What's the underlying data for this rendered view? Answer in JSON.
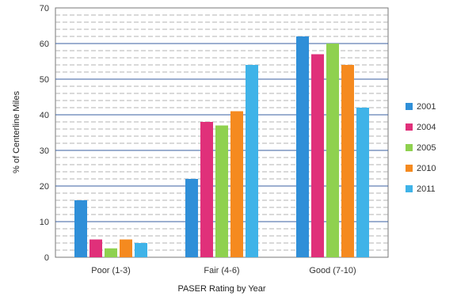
{
  "chart_data": {
    "type": "bar",
    "categories": [
      "Poor (1-3)",
      "Fair (4-6)",
      "Good (7-10)"
    ],
    "series": [
      {
        "name": "2001",
        "color": "#2f8fd8",
        "values": [
          16,
          22,
          62
        ]
      },
      {
        "name": "2004",
        "color": "#e0307a",
        "values": [
          5,
          38,
          57
        ]
      },
      {
        "name": "2005",
        "color": "#8fd14f",
        "values": [
          2.5,
          37,
          60
        ]
      },
      {
        "name": "2010",
        "color": "#f58a1f",
        "values": [
          5,
          41,
          54
        ]
      },
      {
        "name": "2011",
        "color": "#3fb3e8",
        "values": [
          4,
          54,
          42
        ]
      }
    ],
    "xlabel": "PASER Rating by Year",
    "ylabel": "% of Centerline Miles",
    "ylim": [
      0,
      70
    ],
    "yticks": [
      "0",
      "10",
      "20",
      "30",
      "40",
      "50",
      "60",
      "70"
    ],
    "grid": true,
    "legend_position": "right"
  }
}
